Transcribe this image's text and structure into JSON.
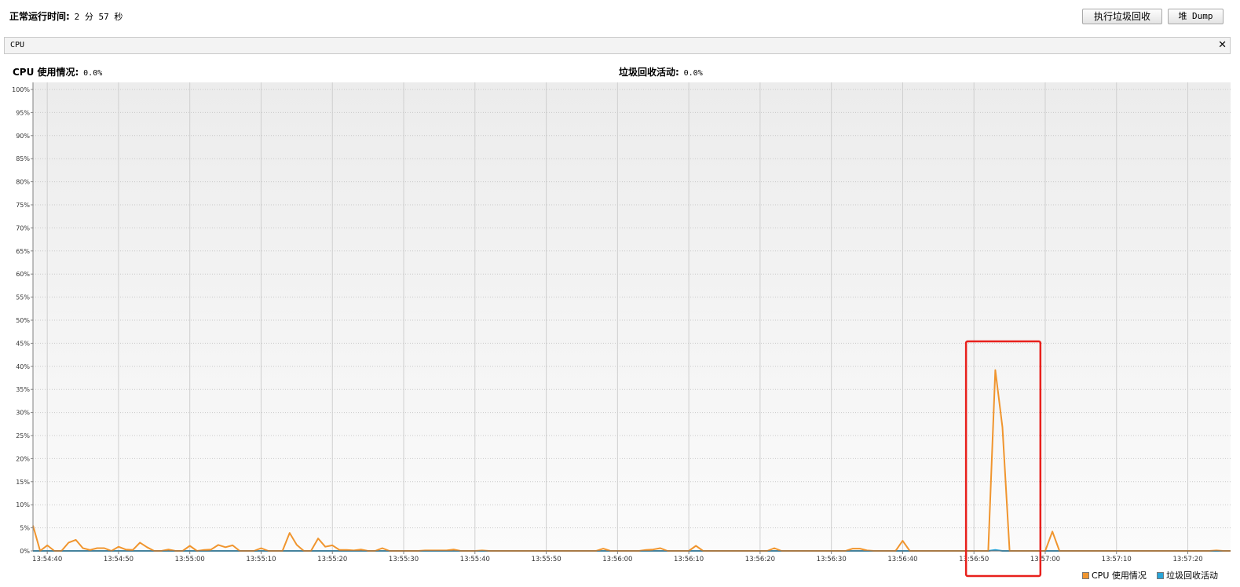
{
  "header": {
    "uptime_label": "正常运行时间:",
    "uptime_value": "2 分 57 秒",
    "gc_button": "执行垃圾回收",
    "dump_button": "堆 Dump"
  },
  "panel": {
    "title": "CPU",
    "close_glyph": "✕"
  },
  "stats": {
    "cpu_label": "CPU 使用情况:",
    "cpu_value": "0.0%",
    "gc_label": "垃圾回收活动:",
    "gc_value": "0.0%"
  },
  "colors": {
    "cpu_line": "#f0952e",
    "gc_line": "#2aa5d8",
    "highlight_box": "#e8201c"
  },
  "chart_data": {
    "type": "line",
    "y_ticks": [
      "0%",
      "5%",
      "10%",
      "15%",
      "20%",
      "25%",
      "30%",
      "35%",
      "40%",
      "45%",
      "50%",
      "55%",
      "60%",
      "65%",
      "70%",
      "75%",
      "80%",
      "85%",
      "90%",
      "95%",
      "100%"
    ],
    "x_ticks": [
      "13:54:40",
      "13:54:50",
      "13:55:00",
      "13:55:10",
      "13:55:20",
      "13:55:30",
      "13:55:40",
      "13:55:50",
      "13:56:00",
      "13:56:10",
      "13:56:20",
      "13:56:30",
      "13:56:40",
      "13:56:50",
      "13:57:00",
      "13:57:10",
      "13:57:20"
    ],
    "ylim": [
      0,
      100
    ],
    "xlim_seconds": [
      0,
      168
    ],
    "x_first_tick_seconds": 2,
    "grid": true,
    "legend_position": "bottom-right",
    "series": [
      {
        "name": "CPU 使用情况",
        "points": [
          [
            0,
            5.5
          ],
          [
            1,
            0
          ],
          [
            2,
            1.2
          ],
          [
            3,
            0
          ],
          [
            4,
            0
          ],
          [
            5,
            1.8
          ],
          [
            6,
            2.4
          ],
          [
            7,
            0.6
          ],
          [
            8,
            0.2
          ],
          [
            9,
            0.6
          ],
          [
            10,
            0.6
          ],
          [
            11,
            0
          ],
          [
            12,
            0.9
          ],
          [
            13,
            0.3
          ],
          [
            14,
            0.2
          ],
          [
            15,
            1.8
          ],
          [
            16,
            0.8
          ],
          [
            17,
            0
          ],
          [
            18,
            0
          ],
          [
            19,
            0.3
          ],
          [
            20,
            0
          ],
          [
            21,
            0
          ],
          [
            22,
            1.1
          ],
          [
            23,
            0
          ],
          [
            24,
            0.2
          ],
          [
            25,
            0.3
          ],
          [
            26,
            1.3
          ],
          [
            27,
            0.8
          ],
          [
            28,
            1.2
          ],
          [
            29,
            0
          ],
          [
            30,
            0
          ],
          [
            31,
            0
          ],
          [
            32,
            0.6
          ],
          [
            33,
            0
          ],
          [
            34,
            0
          ],
          [
            35,
            0
          ],
          [
            36,
            3.9
          ],
          [
            37,
            1.3
          ],
          [
            38,
            0
          ],
          [
            39,
            0
          ],
          [
            40,
            2.7
          ],
          [
            41,
            0.9
          ],
          [
            42,
            1.2
          ],
          [
            43,
            0.2
          ],
          [
            44,
            0.2
          ],
          [
            45,
            0.1
          ],
          [
            46,
            0.3
          ],
          [
            47,
            0
          ],
          [
            48,
            0
          ],
          [
            49,
            0.6
          ],
          [
            50,
            0
          ],
          [
            51,
            0
          ],
          [
            52,
            0
          ],
          [
            53,
            0
          ],
          [
            54,
            0
          ],
          [
            55,
            0.1
          ],
          [
            56,
            0.1
          ],
          [
            57,
            0.1
          ],
          [
            58,
            0.1
          ],
          [
            59,
            0.3
          ],
          [
            60,
            0
          ],
          [
            61,
            0
          ],
          [
            62,
            0
          ],
          [
            63,
            0.1
          ],
          [
            64,
            0
          ],
          [
            65,
            0
          ],
          [
            66,
            0
          ],
          [
            67,
            0
          ],
          [
            68,
            0
          ],
          [
            69,
            0
          ],
          [
            70,
            0
          ],
          [
            71,
            0
          ],
          [
            72,
            0
          ],
          [
            73,
            0
          ],
          [
            74,
            0
          ],
          [
            75,
            0
          ],
          [
            76,
            0
          ],
          [
            77,
            0
          ],
          [
            78,
            0
          ],
          [
            79,
            0
          ],
          [
            80,
            0.5
          ],
          [
            81,
            0
          ],
          [
            82,
            0
          ],
          [
            83,
            0
          ],
          [
            84,
            0
          ],
          [
            85,
            0
          ],
          [
            86,
            0.2
          ],
          [
            87,
            0.3
          ],
          [
            88,
            0.6
          ],
          [
            89,
            0
          ],
          [
            90,
            0
          ],
          [
            91,
            0
          ],
          [
            92,
            0
          ],
          [
            93,
            1.1
          ],
          [
            94,
            0
          ],
          [
            95,
            0
          ],
          [
            96,
            0
          ],
          [
            97,
            0
          ],
          [
            98,
            0
          ],
          [
            99,
            0
          ],
          [
            100,
            0
          ],
          [
            101,
            0
          ],
          [
            102,
            0
          ],
          [
            103,
            0
          ],
          [
            104,
            0.6
          ],
          [
            105,
            0
          ],
          [
            106,
            0
          ],
          [
            107,
            0
          ],
          [
            108,
            0
          ],
          [
            109,
            0
          ],
          [
            110,
            0
          ],
          [
            111,
            0
          ],
          [
            112,
            0
          ],
          [
            113,
            0
          ],
          [
            114,
            0
          ],
          [
            115,
            0.5
          ],
          [
            116,
            0.5
          ],
          [
            117,
            0.1
          ],
          [
            118,
            0
          ],
          [
            119,
            0
          ],
          [
            120,
            0
          ],
          [
            121,
            0
          ],
          [
            122,
            2.2
          ],
          [
            123,
            0
          ],
          [
            124,
            0
          ],
          [
            125,
            0
          ],
          [
            126,
            0
          ],
          [
            127,
            0
          ],
          [
            128,
            0
          ],
          [
            129,
            0
          ],
          [
            130,
            0
          ],
          [
            131,
            0
          ],
          [
            132,
            0
          ],
          [
            133,
            0
          ],
          [
            134,
            0
          ],
          [
            135,
            39.2
          ],
          [
            136,
            26.8
          ],
          [
            137,
            0
          ],
          [
            138,
            0
          ],
          [
            139,
            0
          ],
          [
            140,
            0
          ],
          [
            141,
            0
          ],
          [
            142,
            0
          ],
          [
            143,
            4.2
          ],
          [
            144,
            0
          ],
          [
            145,
            0
          ],
          [
            146,
            0
          ],
          [
            147,
            0
          ],
          [
            148,
            0
          ],
          [
            149,
            0
          ],
          [
            150,
            0
          ],
          [
            151,
            0
          ],
          [
            152,
            0
          ],
          [
            153,
            0
          ],
          [
            154,
            0
          ],
          [
            155,
            0
          ],
          [
            156,
            0
          ],
          [
            157,
            0
          ],
          [
            158,
            0
          ],
          [
            159,
            0
          ],
          [
            160,
            0
          ],
          [
            161,
            0
          ],
          [
            162,
            0
          ],
          [
            163,
            0
          ],
          [
            164,
            0
          ],
          [
            165,
            0
          ],
          [
            166,
            0.1
          ],
          [
            167,
            0
          ],
          [
            168,
            0
          ]
        ]
      },
      {
        "name": "垃圾回收活动",
        "points": [
          [
            0,
            0
          ],
          [
            134,
            0
          ],
          [
            135,
            0.2
          ],
          [
            136,
            0
          ],
          [
            168,
            0
          ]
        ]
      }
    ],
    "annotation": {
      "type": "highlight-rect",
      "x_range_seconds": [
        131,
        140
      ],
      "y_range": [
        -6,
        45
      ]
    }
  }
}
